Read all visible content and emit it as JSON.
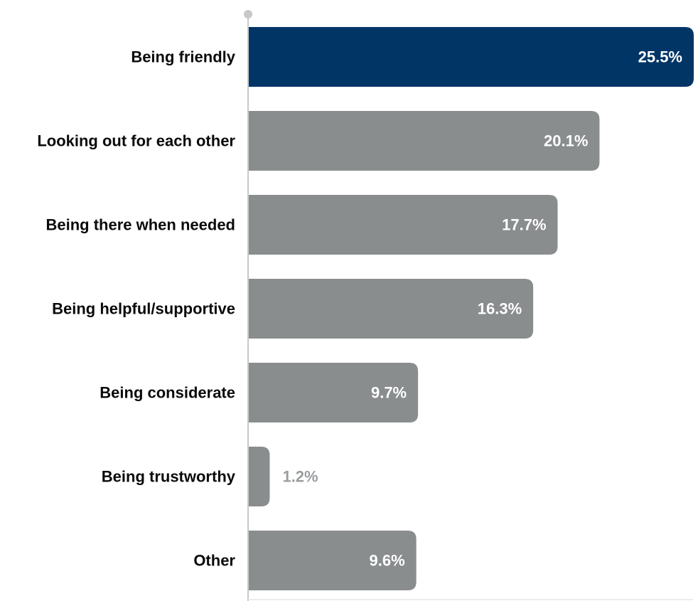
{
  "chart_data": {
    "type": "bar",
    "orientation": "horizontal",
    "categories": [
      "Being friendly",
      "Looking out for each other",
      "Being there when needed",
      "Being helpful/supportive",
      "Being considerate",
      "Being trustworthy",
      "Other"
    ],
    "values": [
      25.5,
      20.1,
      17.7,
      16.3,
      9.7,
      1.2,
      9.6
    ],
    "value_labels": [
      "25.5%",
      "20.1%",
      "17.7%",
      "16.3%",
      "9.7%",
      "1.2%",
      "9.6%"
    ],
    "xlim": [
      0,
      25.5
    ],
    "grid": false,
    "legend": "none",
    "highlight_index": 0,
    "colors": {
      "highlight": "#003566",
      "bar": "#8a8d8e",
      "label_inside": "#ffffff",
      "label_outside": "#9a9d9f",
      "axis": "#c8c8c8",
      "category_text": "#0a0a0a"
    }
  }
}
